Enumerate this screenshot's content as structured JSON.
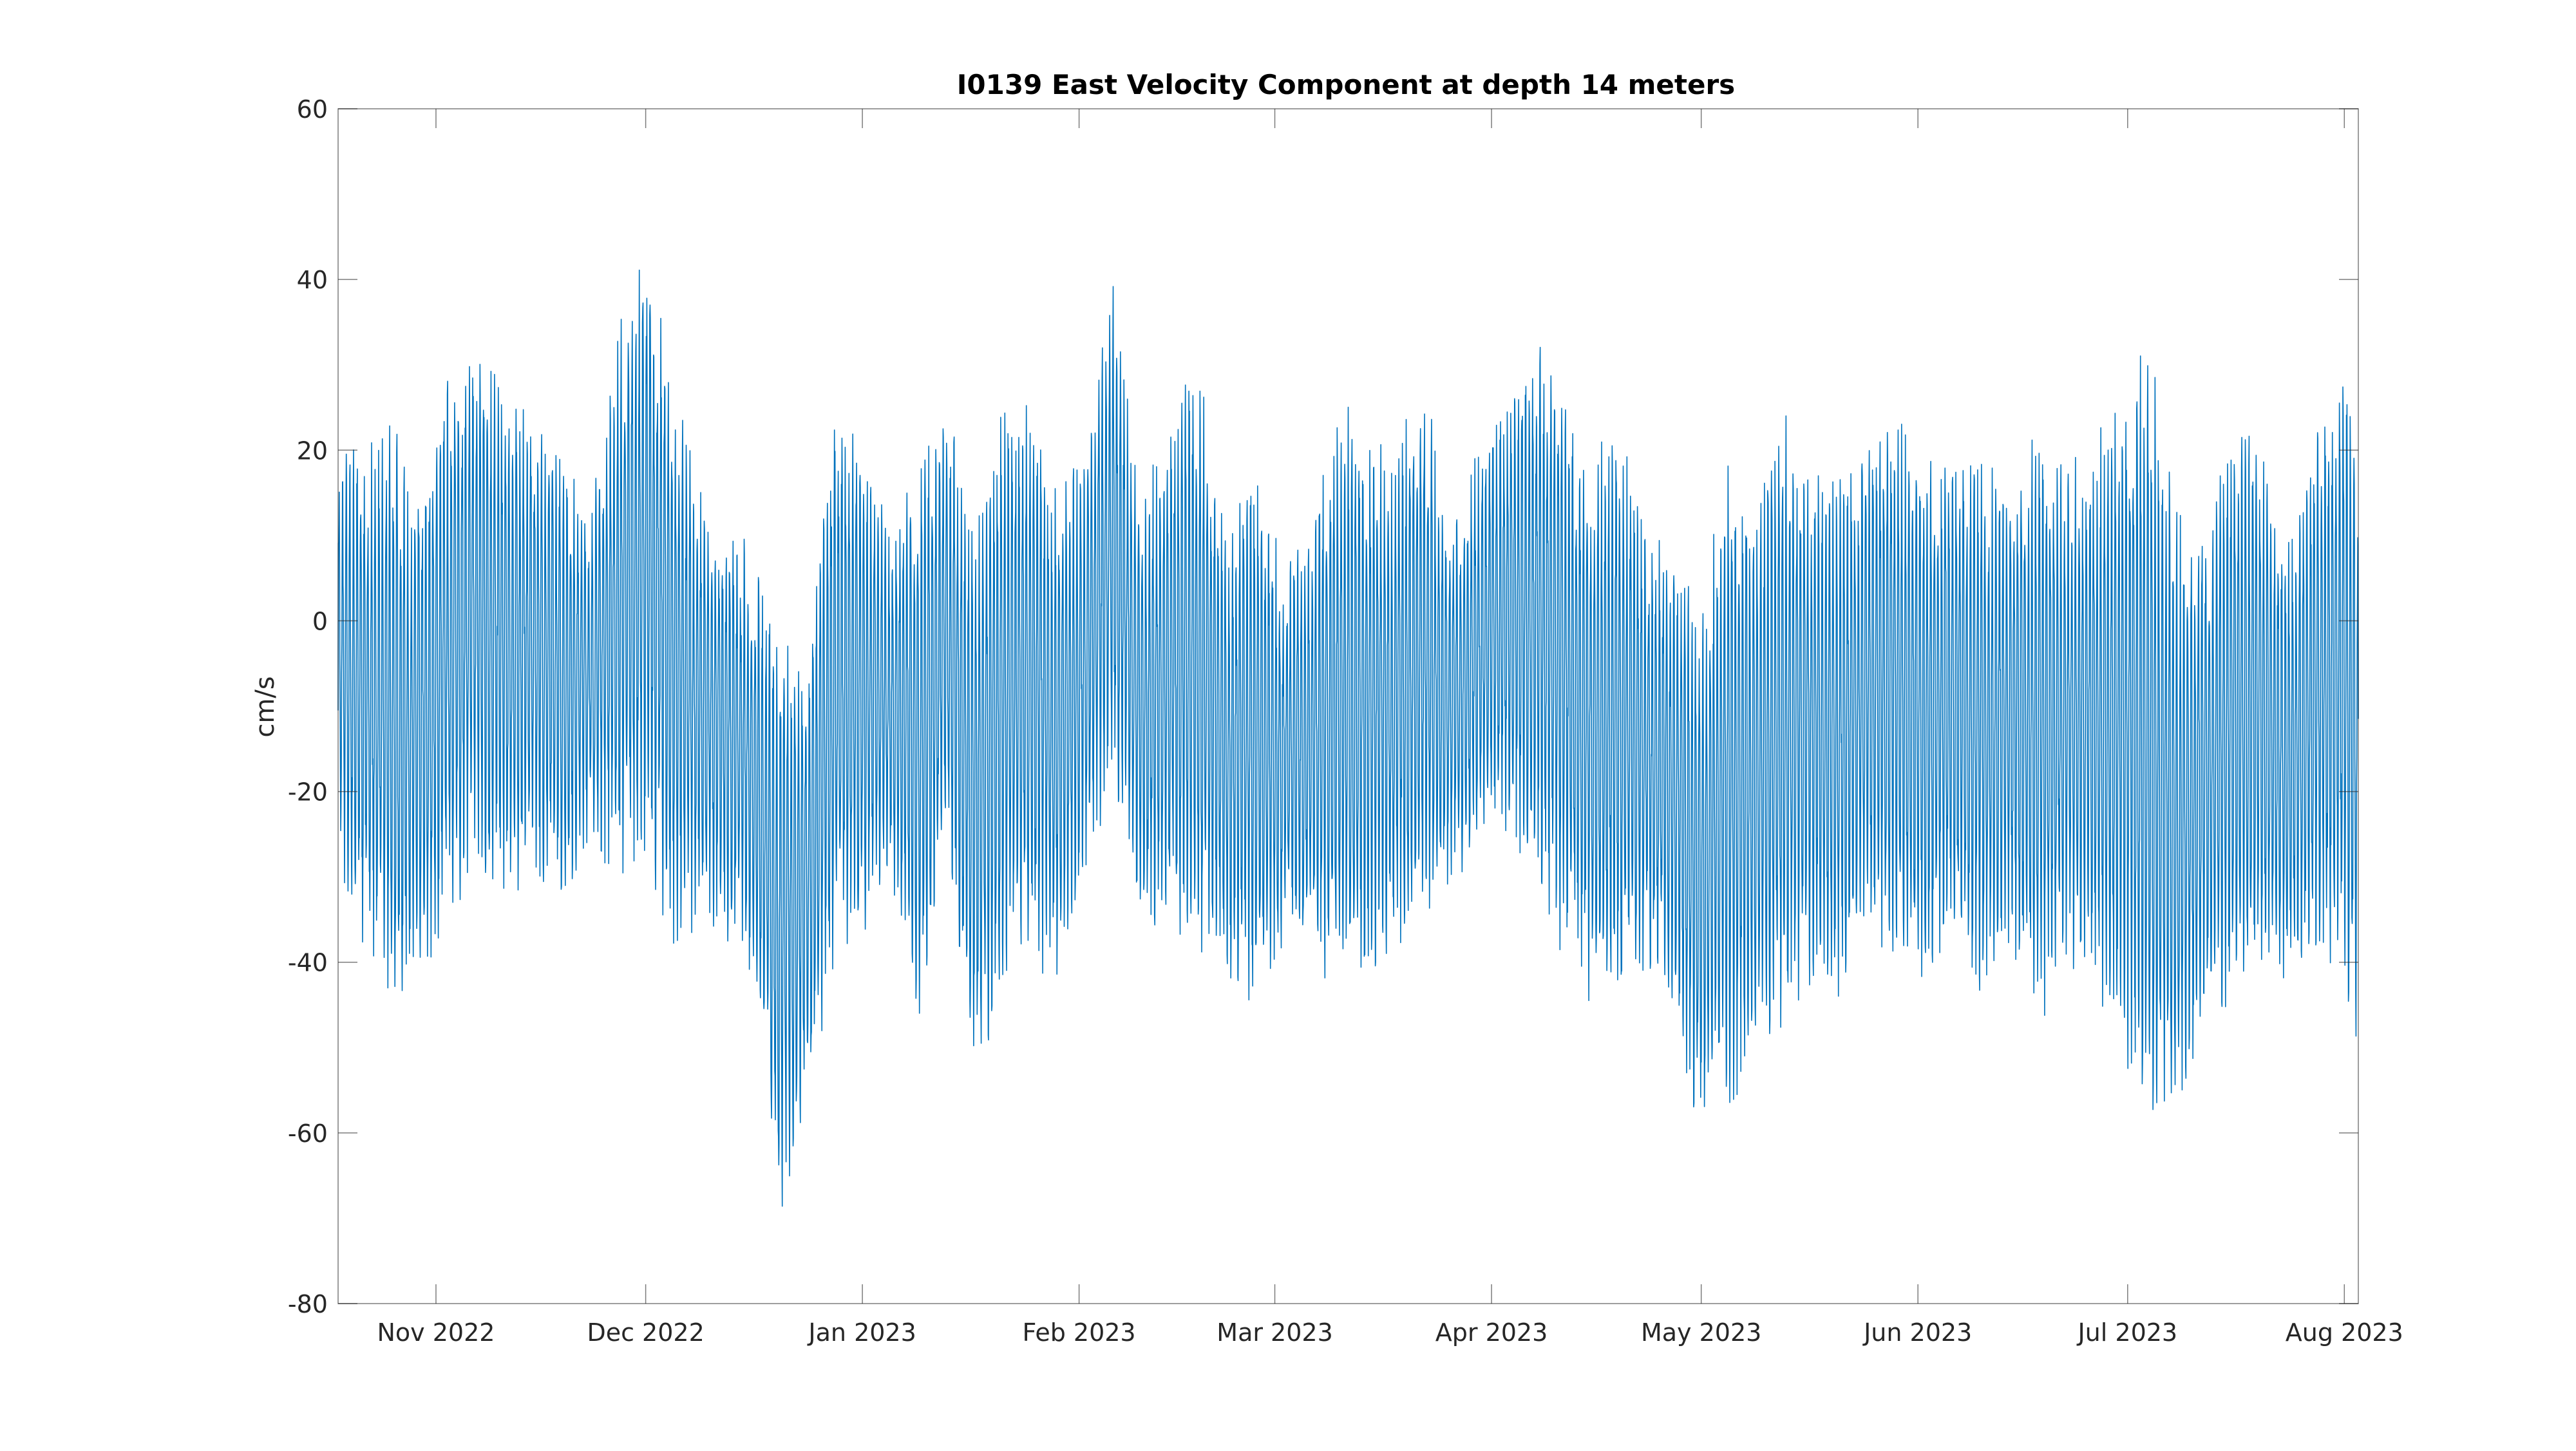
{
  "chart_data": {
    "type": "line",
    "title": "I0139 East Velocity Component at depth 14 meters",
    "xlabel": "",
    "ylabel": "cm/s",
    "x_range": [
      "2022-10-18",
      "2023-08-03"
    ],
    "ylim": [
      -80,
      60
    ],
    "y_ticks": [
      60,
      40,
      20,
      0,
      -20,
      -40,
      -60,
      -80
    ],
    "x_ticks": [
      {
        "date": "2022-11-01",
        "label": "Nov 2022"
      },
      {
        "date": "2022-12-01",
        "label": "Dec 2022"
      },
      {
        "date": "2023-01-01",
        "label": "Jan 2023"
      },
      {
        "date": "2023-02-01",
        "label": "Feb 2023"
      },
      {
        "date": "2023-03-01",
        "label": "Mar 2023"
      },
      {
        "date": "2023-04-01",
        "label": "Apr 2023"
      },
      {
        "date": "2023-05-01",
        "label": "May 2023"
      },
      {
        "date": "2023-06-01",
        "label": "Jun 2023"
      },
      {
        "date": "2023-07-01",
        "label": "Jul 2023"
      },
      {
        "date": "2023-08-01",
        "label": "Aug 2023"
      }
    ],
    "grid": false,
    "legend": "none",
    "series_color": "#0072BD",
    "envelope": {
      "x": [
        "2022-10-18",
        "2022-10-22",
        "2022-10-26",
        "2022-10-30",
        "2022-11-03",
        "2022-11-07",
        "2022-11-11",
        "2022-11-15",
        "2022-11-19",
        "2022-11-23",
        "2022-11-27",
        "2022-12-01",
        "2022-12-05",
        "2022-12-09",
        "2022-12-13",
        "2022-12-17",
        "2022-12-20",
        "2022-12-24",
        "2022-12-28",
        "2023-01-01",
        "2023-01-05",
        "2023-01-09",
        "2023-01-13",
        "2023-01-17",
        "2023-01-21",
        "2023-01-25",
        "2023-01-29",
        "2023-02-02",
        "2023-02-06",
        "2023-02-10",
        "2023-02-14",
        "2023-02-18",
        "2023-02-22",
        "2023-02-26",
        "2023-03-02",
        "2023-03-06",
        "2023-03-10",
        "2023-03-14",
        "2023-03-18",
        "2023-03-22",
        "2023-03-26",
        "2023-03-30",
        "2023-04-03",
        "2023-04-07",
        "2023-04-11",
        "2023-04-15",
        "2023-04-19",
        "2023-04-23",
        "2023-04-27",
        "2023-05-01",
        "2023-05-05",
        "2023-05-09",
        "2023-05-13",
        "2023-05-17",
        "2023-05-21",
        "2023-05-25",
        "2023-05-29",
        "2023-06-02",
        "2023-06-06",
        "2023-06-10",
        "2023-06-14",
        "2023-06-18",
        "2023-06-22",
        "2023-06-26",
        "2023-06-30",
        "2023-07-04",
        "2023-07-08",
        "2023-07-12",
        "2023-07-16",
        "2023-07-20",
        "2023-07-24",
        "2023-07-28",
        "2023-08-01",
        "2023-08-03"
      ],
      "max": [
        20,
        22,
        24,
        18,
        30,
        35,
        28,
        25,
        22,
        12,
        35,
        44,
        30,
        15,
        12,
        8,
        2,
        -5,
        26,
        22,
        10,
        20,
        26,
        14,
        28,
        25,
        18,
        22,
        40,
        15,
        25,
        32,
        12,
        20,
        8,
        10,
        28,
        24,
        20,
        30,
        12,
        20,
        28,
        34,
        30,
        18,
        26,
        12,
        8,
        2,
        22,
        15,
        25,
        20,
        18,
        22,
        25,
        20,
        24,
        20,
        15,
        24,
        18,
        22,
        26,
        34,
        14,
        12,
        24,
        22,
        10,
        24,
        32,
        18
      ],
      "min": [
        -30,
        -40,
        -48,
        -45,
        -35,
        -32,
        -34,
        -30,
        -35,
        -25,
        -32,
        -28,
        -40,
        -36,
        -38,
        -45,
        -74,
        -58,
        -42,
        -38,
        -30,
        -48,
        -28,
        -55,
        -46,
        -40,
        -44,
        -30,
        -20,
        -38,
        -36,
        -40,
        -42,
        -46,
        -40,
        -38,
        -48,
        -44,
        -40,
        -38,
        -32,
        -28,
        -26,
        -30,
        -40,
        -45,
        -48,
        -42,
        -46,
        -62,
        -58,
        -52,
        -48,
        -44,
        -46,
        -38,
        -42,
        -44,
        -40,
        -45,
        -38,
        -48,
        -42,
        -44,
        -50,
        -62,
        -60,
        -50,
        -46,
        -42,
        -44,
        -40,
        -42,
        -56
      ]
    },
    "period_days": 0.5175
  }
}
